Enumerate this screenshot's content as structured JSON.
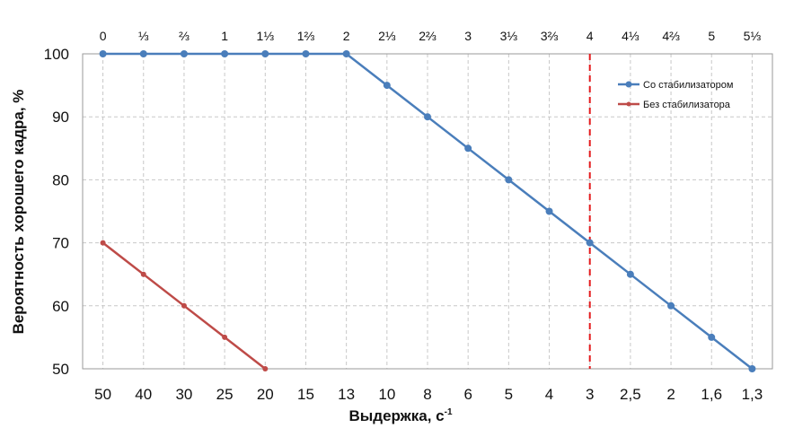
{
  "chart_data": {
    "type": "line",
    "title": "",
    "xlabel": "Выдержка, с",
    "xlabel_sup": "-1",
    "ylabel": "Вероятность хорошего кадра, %",
    "ylim": [
      50,
      100
    ],
    "yticks": [
      50,
      60,
      70,
      80,
      90,
      100
    ],
    "categories": [
      "50",
      "40",
      "30",
      "25",
      "20",
      "15",
      "13",
      "10",
      "8",
      "6",
      "5",
      "4",
      "3",
      "2,5",
      "2",
      "1,6",
      "1,3"
    ],
    "top_axis_labels": [
      "0",
      "⅓",
      "⅔",
      "1",
      "1⅓",
      "1⅔",
      "2",
      "2⅓",
      "2⅔",
      "3",
      "3⅓",
      "3⅔",
      "4",
      "4⅓",
      "4⅔",
      "5",
      "5⅓"
    ],
    "grid": true,
    "legend_position": "top-right",
    "reference_line": {
      "category": "3",
      "top_label": "4",
      "color": "#e41a1c",
      "style": "dashed"
    },
    "series": [
      {
        "name": "Со стабилизатором",
        "color": "#4a7ebb",
        "values": [
          100,
          100,
          100,
          100,
          100,
          100,
          100,
          95,
          90,
          85,
          80,
          75,
          70,
          65,
          60,
          55,
          50
        ]
      },
      {
        "name": "Без стабилизатора",
        "color": "#be4b48",
        "values": [
          70,
          65,
          60,
          55,
          50,
          null,
          null,
          null,
          null,
          null,
          null,
          null,
          null,
          null,
          null,
          null,
          null
        ]
      }
    ]
  }
}
